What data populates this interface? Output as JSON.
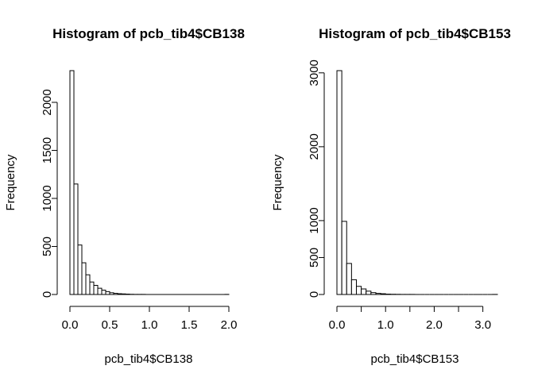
{
  "chart_data": [
    {
      "type": "bar",
      "title": "Histogram of pcb_tib4$CB138",
      "xlabel": "pcb_tib4$CB138",
      "ylabel": "Frequency",
      "bin_width": 0.05,
      "bin_start": 0.0,
      "values": [
        2330,
        1150,
        515,
        330,
        205,
        130,
        95,
        65,
        45,
        30,
        18,
        12,
        8,
        6,
        4,
        2,
        1,
        1,
        1,
        0,
        0,
        0,
        0,
        0,
        0,
        0,
        0,
        0,
        0,
        0,
        0,
        0,
        0,
        0,
        0,
        0,
        0,
        0,
        0,
        1
      ],
      "xlim": [
        0,
        2.0
      ],
      "xticks": [
        0.0,
        0.5,
        1.0,
        1.5,
        2.0
      ],
      "xtick_labels": [
        "0.0",
        "0.5",
        "1.0",
        "1.5",
        "2.0"
      ],
      "ylim": [
        0,
        2330
      ],
      "yticks": [
        0,
        500,
        1000,
        1500,
        2000
      ],
      "ytick_labels": [
        "0",
        "500",
        "1000",
        "1500",
        "2000"
      ]
    },
    {
      "type": "bar",
      "title": "Histogram of pcb_tib4$CB153",
      "xlabel": "pcb_tib4$CB153",
      "ylabel": "Frequency",
      "bin_width": 0.1,
      "bin_start": 0.0,
      "values": [
        3030,
        990,
        420,
        200,
        110,
        75,
        45,
        25,
        15,
        10,
        5,
        3,
        2,
        1,
        1,
        1,
        0,
        0,
        0,
        0,
        0,
        0,
        0,
        0,
        0,
        0,
        0,
        0,
        0,
        0,
        0,
        0,
        1
      ],
      "xlim": [
        0,
        3.3
      ],
      "xticks": [
        0.0,
        0.5,
        1.0,
        1.5,
        2.0,
        2.5,
        3.0
      ],
      "xtick_labels": [
        "0.0",
        "",
        "1.0",
        "",
        "2.0",
        "",
        "3.0"
      ],
      "ylim": [
        0,
        3030
      ],
      "yticks": [
        0,
        500,
        1000,
        2000,
        3000
      ],
      "ytick_labels": [
        "0",
        "500",
        "1000",
        "2000",
        "3000"
      ]
    }
  ]
}
